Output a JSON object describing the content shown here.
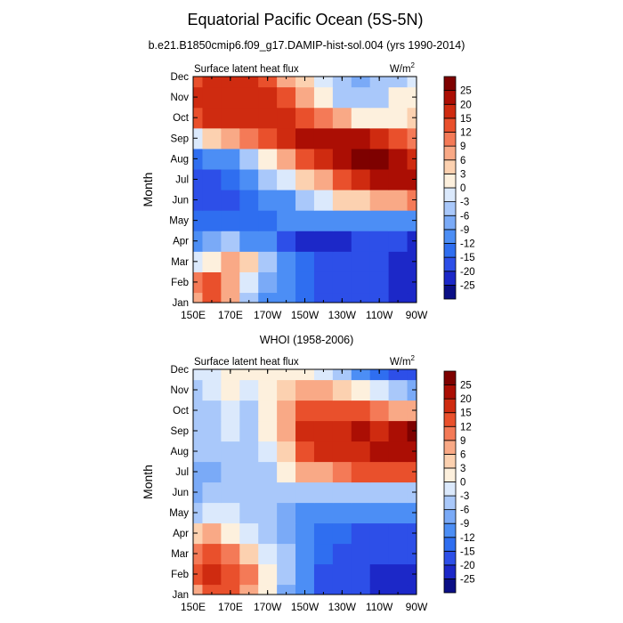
{
  "figure": {
    "title": "Equatorial Pacific Ocean (5S-5N)"
  },
  "chart_data": [
    {
      "type": "heatmap",
      "title": "b.e21.B1850cmip6.f09_g17.DAMIP-hist-sol.004 (yrs 1990-2014)",
      "left_label": "Surface latent heat flux",
      "right_label": "W/m",
      "right_label_sup": "2",
      "ylabel": "Month",
      "y_categories": [
        "Jan",
        "Feb",
        "Mar",
        "Apr",
        "May",
        "Jun",
        "Jul",
        "Aug",
        "Sep",
        "Oct",
        "Nov",
        "Dec"
      ],
      "x_ticks": [
        "150E",
        "170E",
        "170W",
        "150W",
        "130W",
        "110W",
        "90W"
      ],
      "x_tick_values": [
        150,
        170,
        190,
        210,
        230,
        250,
        270
      ],
      "xlim": [
        150,
        270
      ],
      "columns_lon": [
        150,
        160,
        170,
        180,
        190,
        200,
        210,
        220,
        230,
        240,
        250,
        260,
        270
      ],
      "values": [
        [
          8,
          12,
          6,
          -6,
          -10,
          -12,
          -14,
          -16,
          -18,
          -18,
          -20,
          -22,
          -24
        ],
        [
          10,
          14,
          8,
          -2,
          -8,
          -12,
          -14,
          -16,
          -18,
          -18,
          -20,
          -22,
          -24
        ],
        [
          -3,
          2,
          6,
          4,
          -4,
          -10,
          -14,
          -16,
          -18,
          -18,
          -20,
          -22,
          -24
        ],
        [
          -10,
          -8,
          -6,
          -10,
          -12,
          -16,
          -22,
          -24,
          -22,
          -20,
          -18,
          -20,
          -22
        ],
        [
          -14,
          -14,
          -14,
          -14,
          -14,
          -12,
          -10,
          -10,
          -12,
          -12,
          -12,
          -12,
          -12
        ],
        [
          -18,
          -18,
          -16,
          -14,
          -12,
          -10,
          -6,
          -1,
          3,
          5,
          6,
          8,
          10
        ],
        [
          -18,
          -16,
          -14,
          -10,
          -6,
          -2,
          3,
          8,
          12,
          16,
          20,
          22,
          22
        ],
        [
          -14,
          -12,
          -10,
          -4,
          0,
          6,
          12,
          18,
          22,
          26,
          26,
          22,
          18
        ],
        [
          -2,
          3,
          6,
          10,
          14,
          18,
          22,
          24,
          22,
          20,
          18,
          14,
          10
        ],
        [
          14,
          16,
          18,
          18,
          18,
          16,
          14,
          10,
          6,
          2,
          0,
          2,
          4
        ],
        [
          16,
          18,
          18,
          18,
          16,
          12,
          8,
          2,
          -4,
          -6,
          -4,
          0,
          2
        ],
        [
          14,
          16,
          18,
          16,
          14,
          8,
          4,
          -2,
          -6,
          -8,
          -6,
          -4,
          -2
        ]
      ]
    },
    {
      "type": "heatmap",
      "title": "WHOI (1958-2006)",
      "left_label": "Surface latent heat flux",
      "right_label": "W/m",
      "right_label_sup": "2",
      "ylabel": "Month",
      "y_categories": [
        "Jan",
        "Feb",
        "Mar",
        "Apr",
        "May",
        "Jun",
        "Jul",
        "Aug",
        "Sep",
        "Oct",
        "Nov",
        "Dec"
      ],
      "x_ticks": [
        "150E",
        "170E",
        "170W",
        "150W",
        "130W",
        "110W",
        "90W"
      ],
      "x_tick_values": [
        150,
        170,
        190,
        210,
        230,
        250,
        270
      ],
      "xlim": [
        150,
        270
      ],
      "columns_lon": [
        150,
        160,
        170,
        180,
        190,
        200,
        210,
        220,
        230,
        240,
        250,
        260,
        270
      ],
      "values": [
        [
          8,
          14,
          12,
          8,
          0,
          -8,
          -12,
          -16,
          -18,
          -20,
          -22,
          -24,
          -24
        ],
        [
          12,
          16,
          14,
          10,
          2,
          -6,
          -12,
          -16,
          -18,
          -20,
          -22,
          -22,
          -22
        ],
        [
          10,
          12,
          10,
          4,
          -2,
          -6,
          -10,
          -14,
          -16,
          -18,
          -18,
          -18,
          -18
        ],
        [
          4,
          6,
          2,
          -2,
          -6,
          -8,
          -12,
          -14,
          -14,
          -16,
          -16,
          -16,
          -16
        ],
        [
          -4,
          -2,
          -2,
          -4,
          -6,
          -8,
          -10,
          -12,
          -12,
          -12,
          -12,
          -12,
          -12
        ],
        [
          -8,
          -6,
          -6,
          -6,
          -6,
          -4,
          -4,
          -4,
          -6,
          -6,
          -6,
          -6,
          -6
        ],
        [
          -8,
          -8,
          -4,
          -6,
          -4,
          2,
          6,
          8,
          10,
          12,
          14,
          14,
          14
        ],
        [
          -6,
          -6,
          -4,
          -6,
          -2,
          4,
          14,
          18,
          16,
          18,
          20,
          22,
          22
        ],
        [
          -6,
          -4,
          -2,
          -4,
          0,
          6,
          16,
          16,
          18,
          20,
          18,
          20,
          26
        ],
        [
          -6,
          -4,
          -2,
          -4,
          0,
          6,
          14,
          12,
          14,
          12,
          10,
          8,
          8
        ],
        [
          -4,
          -2,
          0,
          -2,
          2,
          4,
          8,
          6,
          4,
          2,
          -2,
          -6,
          -8
        ],
        [
          -2,
          -2,
          0,
          0,
          2,
          2,
          0,
          -2,
          -6,
          -10,
          -14,
          -18,
          -20
        ]
      ]
    }
  ],
  "colorbar": {
    "levels": [
      -25,
      -20,
      -15,
      -12,
      -9,
      -6,
      -3,
      0,
      3,
      6,
      9,
      12,
      15,
      20,
      25
    ],
    "labels": [
      "-25",
      "-20",
      "-15",
      "-12",
      "-9",
      "-6",
      "-3",
      "0",
      "3",
      "6",
      "9",
      "12",
      "15",
      "20",
      "25"
    ],
    "colors": [
      "#0b0f85",
      "#1c28c8",
      "#2d4fe8",
      "#2f6ef0",
      "#4c8ef5",
      "#7aaaf7",
      "#a9c8fa",
      "#dbe9fc",
      "#fdf0dd",
      "#fcd1b0",
      "#f9a986",
      "#f47a57",
      "#e9502c",
      "#cf2b10",
      "#ab0e04",
      "#7e0100"
    ]
  }
}
